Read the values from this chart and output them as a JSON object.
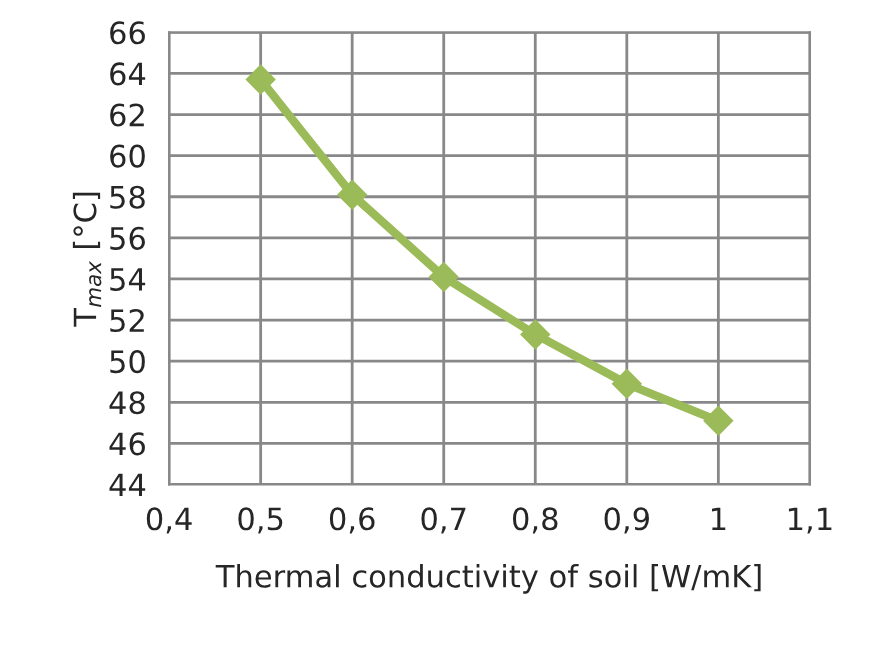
{
  "chart_data": {
    "type": "line",
    "xlabel": "Thermal conductivity of soil [W/mK]",
    "ylabel": "T$_{max}$ [°C]",
    "x": [
      0.5,
      0.6,
      0.7,
      0.8,
      0.9,
      1.0
    ],
    "series": [
      {
        "color": "#9bbb59",
        "values": [
          63.7,
          58.1,
          54.1,
          51.3,
          48.9,
          47.1
        ]
      }
    ],
    "xlim": [
      0.4,
      1.1
    ],
    "xticks": [
      {
        "value": 0.4,
        "label": "0,4"
      },
      {
        "value": 0.5,
        "label": "0,5"
      },
      {
        "value": 0.6,
        "label": "0,6"
      },
      {
        "value": 0.7,
        "label": "0,7"
      },
      {
        "value": 0.8,
        "label": "0,8"
      },
      {
        "value": 0.9,
        "label": "0,9"
      },
      {
        "value": 1.0,
        "label": "1"
      },
      {
        "value": 1.1,
        "label": "1,1"
      }
    ],
    "ylim": [
      44,
      66
    ],
    "yticks": [
      44,
      46,
      48,
      50,
      52,
      54,
      56,
      58,
      60,
      62,
      64,
      66
    ],
    "grid": true,
    "marker": "diamond",
    "line_style": "solid"
  }
}
